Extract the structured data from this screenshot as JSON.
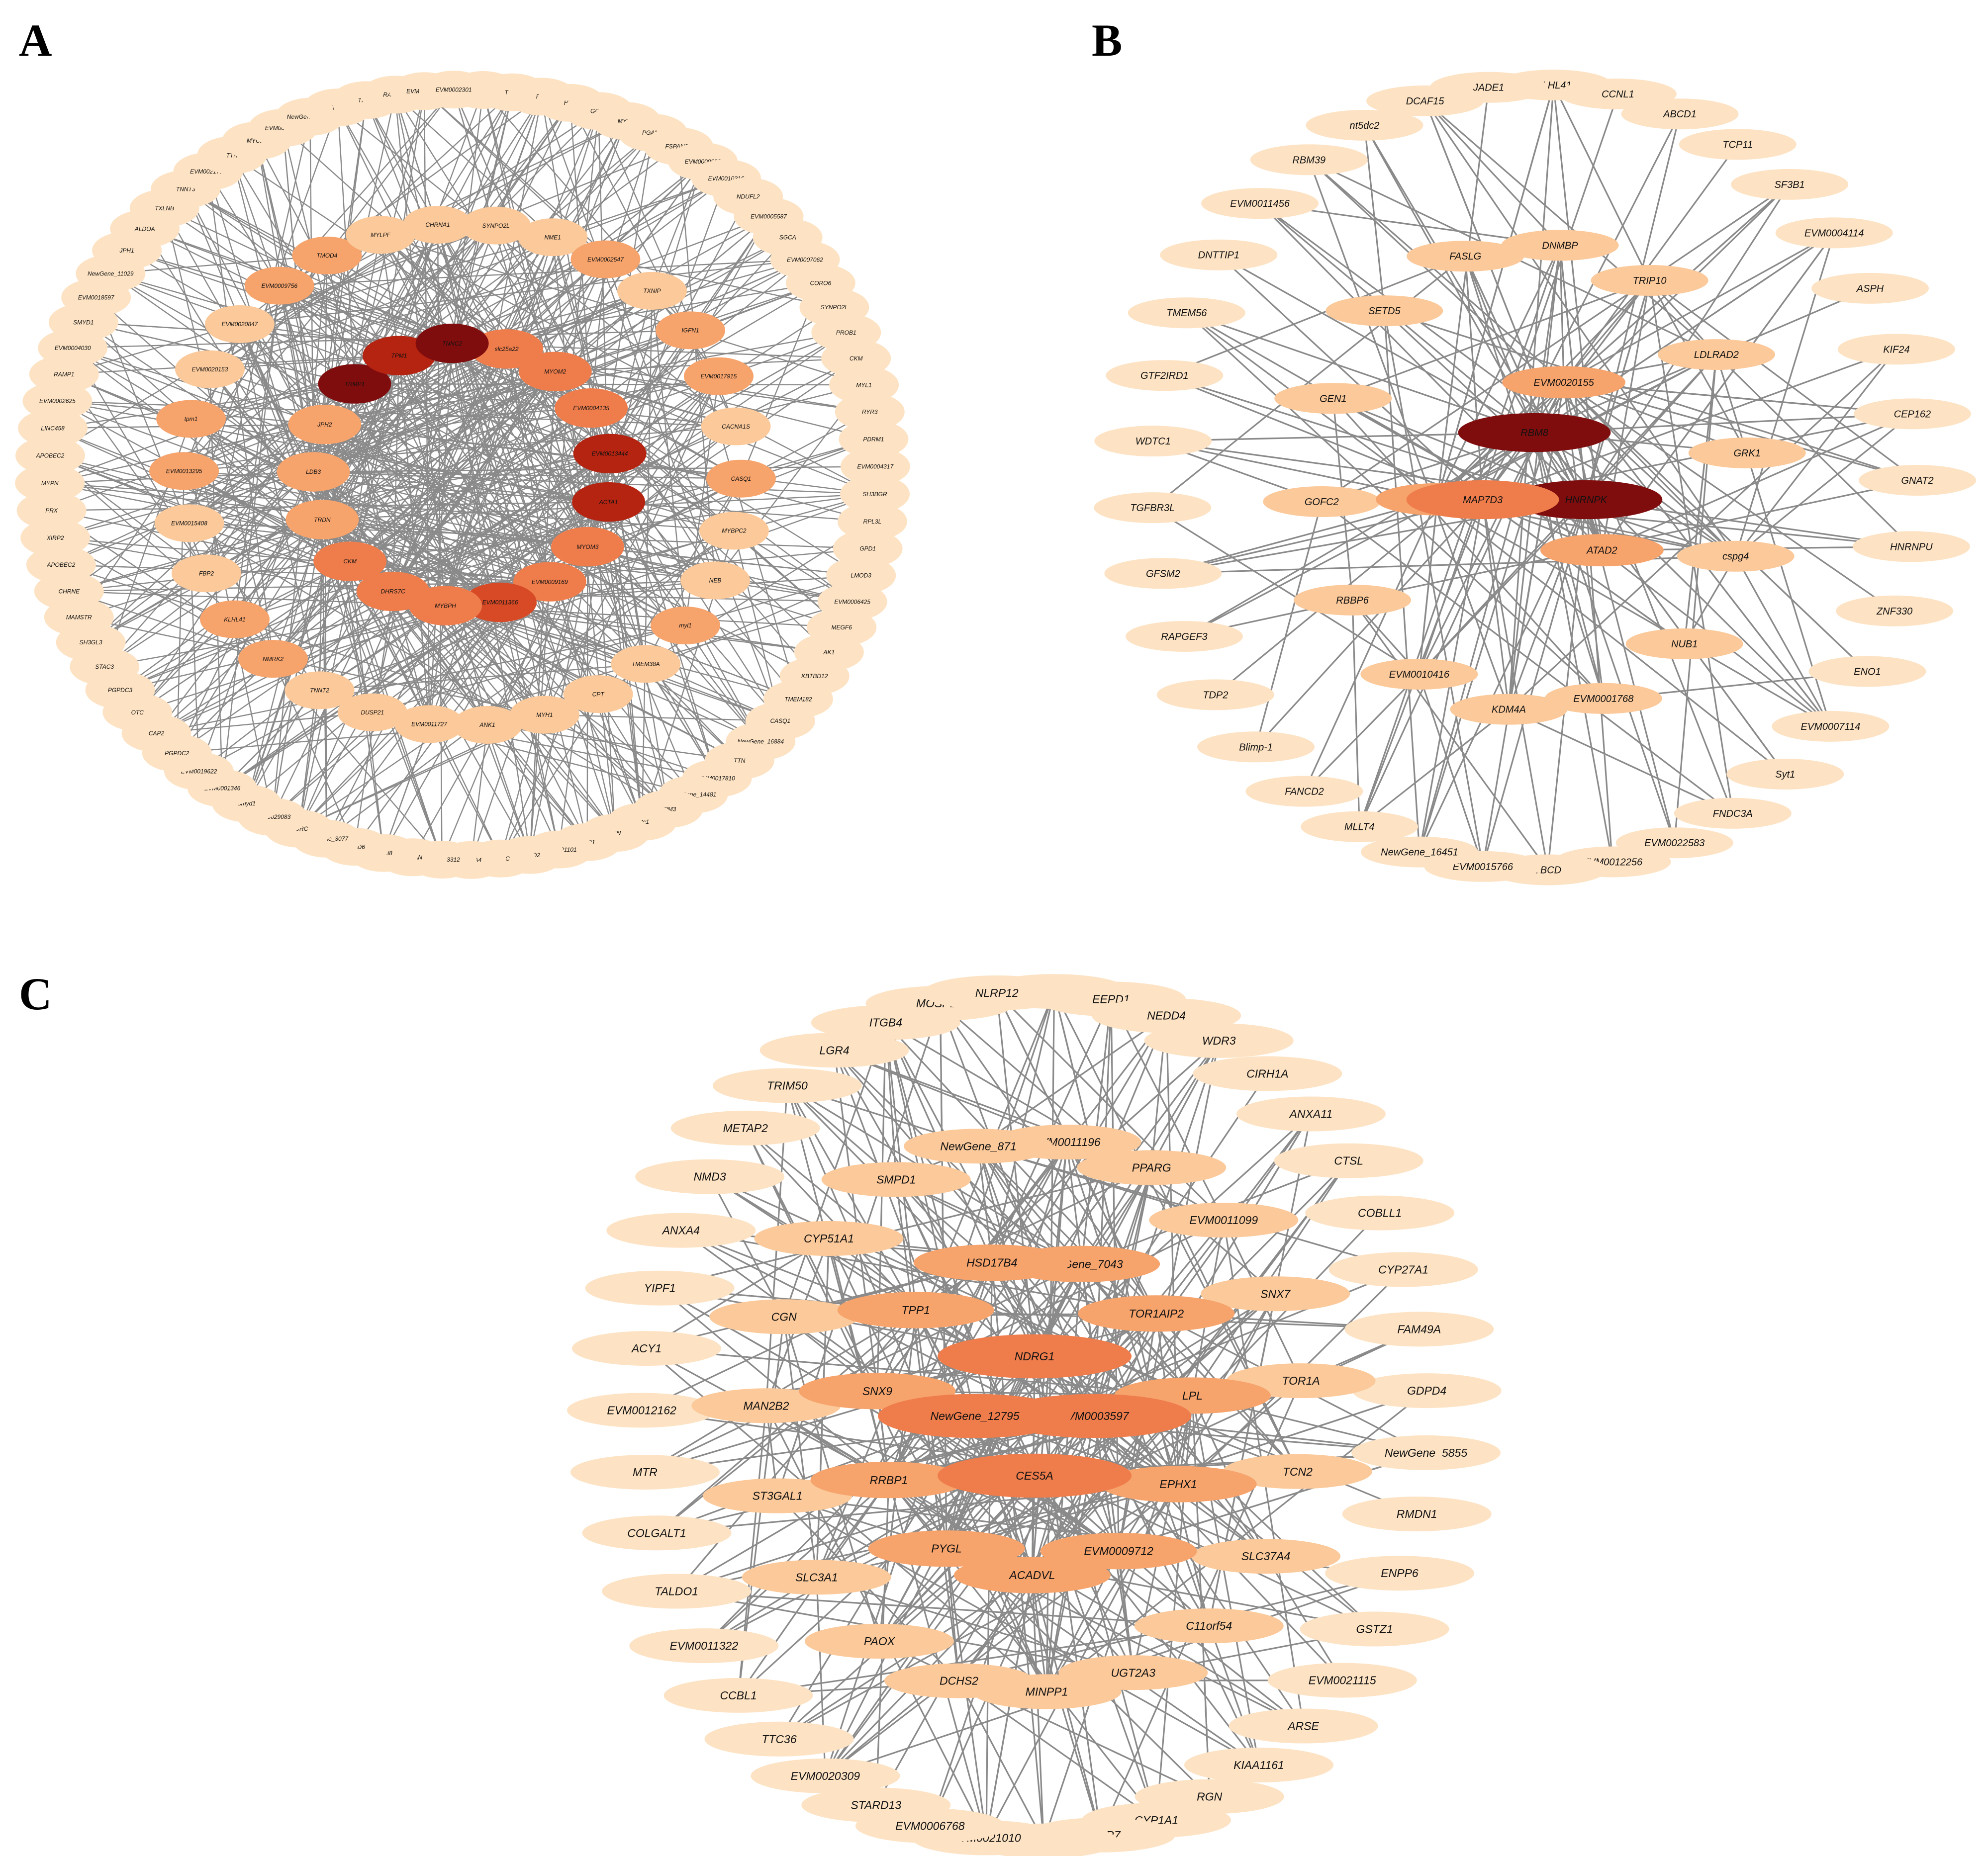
{
  "colors": {
    "background": "#ffffff",
    "edge": "#8a8a8a",
    "node_level_0": "#fde3c4",
    "node_level_1": "#fbc99a",
    "node_level_2": "#f6a36c",
    "node_level_3": "#ef7d4c",
    "node_level_4": "#d84a26",
    "node_level_5": "#b52311",
    "node_level_6": "#800d0d"
  },
  "panels": [
    {
      "letter": "A",
      "outer_nodes": [
        "PRKAG3",
        "TBPN",
        "FBF",
        "HRC",
        "GPD1",
        "MYH1",
        "PGAM2",
        "FSPAN33",
        "EVM0000698",
        "EVM0010216",
        "NDUFL2",
        "EVM0005587",
        "SGCA",
        "EVM0007062",
        "CORO6",
        "SYNPO2L",
        "PROB1",
        "CKM",
        "MYL1",
        "RYR3",
        "PDRM1",
        "EVM0004317",
        "SH3BGR",
        "RPL3L",
        "GPD1",
        "LMOD3",
        "EVM0006425",
        "MEGF6",
        "AK1",
        "KBTBD12",
        "TMEM182",
        "CASQ1",
        "NewGene_16884",
        "TTN",
        "EVM0017810",
        "NewGene_14481",
        "TPM3",
        "actc1",
        "TTN",
        "RYR1",
        "EVM0001101",
        "CASQ2",
        "MURC",
        "NCNA4",
        "EVM0013312",
        "TSPAN",
        "JSP38",
        "SMYD6",
        "NewGene_3077",
        "MURC",
        "EVM0029083",
        "smyd1",
        "EVM0001346",
        "EVM0019622",
        "PGPDC2",
        "CAP2",
        "OTC",
        "PGPDC3",
        "STAC3",
        "SH3GL3",
        "MAMSTR",
        "CHRNE",
        "APOBEC2",
        "XIRP2",
        "PRX",
        "MYPN",
        "APOBEC2",
        "LINC458",
        "EVM0002625",
        "RAMP1",
        "EVM0004030",
        "SMYD1",
        "EVM0018597",
        "NewGene_11029",
        "JPH1",
        "ALDOA",
        "TXLNB",
        "TNNT3",
        "EVM0021772",
        "TTN",
        "MYOZ1",
        "EVM0046821",
        "NewGene_15206",
        "TTN",
        "TRDN",
        "RABPC4",
        "EVM0001146",
        "EVM0002301"
      ],
      "middle_nodes": [
        "SYNPO2L",
        "NME1",
        "EVM0002547",
        "TXNIP",
        "IGFN1",
        "EVM0017915",
        "CACNA1S",
        "CASQ1",
        "MYBPC2",
        "NEB",
        "myl1",
        "TMEM38A",
        "CPT",
        "MYH1",
        "ANK1",
        "EVM0011727",
        "DUSP21",
        "TNNT2",
        "NMRK2",
        "KLHL41",
        "FBP2",
        "EVM0015408",
        "EVM0013295",
        "tpm1",
        "EVM0020153",
        "EVM0020847",
        "EVM0009756",
        "TMOD4",
        "MYLPF",
        "CHRNA1"
      ],
      "inner_nodes": [
        "slc25a22",
        "MYOM2",
        "EVM0004135",
        "EVM0013444",
        "ACTA1",
        "MYOM3",
        "EVM0009169",
        "EVM0011366",
        "MYBPH",
        "DHRS7C",
        "CKM",
        "TRDN",
        "LDB3",
        "JPH2",
        "TRMP1",
        "TPM1",
        "TNNC2"
      ]
    },
    {
      "letter": "B",
      "outer_nodes": [
        "KLHL41",
        "CCNL1",
        "ABCD1",
        "TCP11",
        "SF3B1",
        "EVM0004114",
        "ASPH",
        "KIF24",
        "CEP162",
        "GNAT2",
        "HNRNPU",
        "ZNF330",
        "ENO1",
        "EVM0007114",
        "Syt1",
        "FNDC3A",
        "EVM0022583",
        "EVM0012256",
        "TBCD",
        "EVM0015766",
        "NewGene_16451",
        "MLLT4",
        "FANCD2",
        "Blimp-1",
        "TDP2",
        "RAPGEF3",
        "GFSM2",
        "TGFBR3L",
        "WDTC1",
        "GTF2IRD1",
        "TMEM56",
        "DNTTIP1",
        "EVM0011456",
        "RBM39",
        "nt5dc2",
        "DCAF15",
        "JADE1"
      ],
      "middle_nodes": [
        "DNMBP",
        "TRIP10",
        "LDLRAD2",
        "GRK1",
        "cspg4",
        "NUB1",
        "EVM0001768",
        "KDM4A",
        "EVM0010416",
        "RBBP6",
        "GOFC2",
        "GEN1",
        "SETD5",
        "FASLG"
      ],
      "inner_nodes": [
        "EVM0020155",
        "ATAD2",
        "SENP6"
      ],
      "hub_nodes": [
        "RBM8",
        "HNRNPK",
        "MAP7D3"
      ]
    },
    {
      "letter": "C",
      "outer_nodes": [
        "LDLRAP1",
        "EEPD1",
        "NEDD4",
        "WDR3",
        "CIRH1A",
        "ANXA11",
        "CTSL",
        "COBLL1",
        "CYP27A1",
        "FAM49A",
        "GDPD4",
        "NewGene_5855",
        "RMDN1",
        "ENPP6",
        "GSTZ1",
        "EVM0021115",
        "ARSE",
        "KIAA1161",
        "RGN",
        "CYP1A1",
        "DHCR7",
        "GK5",
        "EVM0021010",
        "EVM0006768",
        "STARD13",
        "EVM0020309",
        "TTC36",
        "CCBL1",
        "EVM0011322",
        "TALDO1",
        "COLGALT1",
        "MTR",
        "EVM0012162",
        "ACY1",
        "YIPF1",
        "ANXA4",
        "NMD3",
        "METAP2",
        "TRIM50",
        "LGR4",
        "ITGB4",
        "MOSPD2",
        "NLRP12"
      ],
      "middle_nodes": [
        "EVM0011196",
        "PPARG",
        "EVM0011099",
        "SNX7",
        "TOR1A",
        "TCN2",
        "SLC37A4",
        "C11orf54",
        "UGT2A3",
        "MINPP1",
        "DCHS2",
        "PAOX",
        "SLC3A1",
        "ST3GAL1",
        "MAN2B2",
        "CGN",
        "CYP51A1",
        "SMPD1",
        "NewGene_871"
      ],
      "inner_nodes": [
        "NewGene_7043",
        "TOR1AIP2",
        "LPL",
        "EPHX1",
        "EVM0009712",
        "ACADVL",
        "PYGL",
        "RRBP1",
        "SNX9",
        "TPP1",
        "HSD17B4"
      ],
      "hub_nodes": [
        "NDRG1",
        "EVM0003597",
        "CES5A",
        "NewGene_12795"
      ]
    }
  ]
}
